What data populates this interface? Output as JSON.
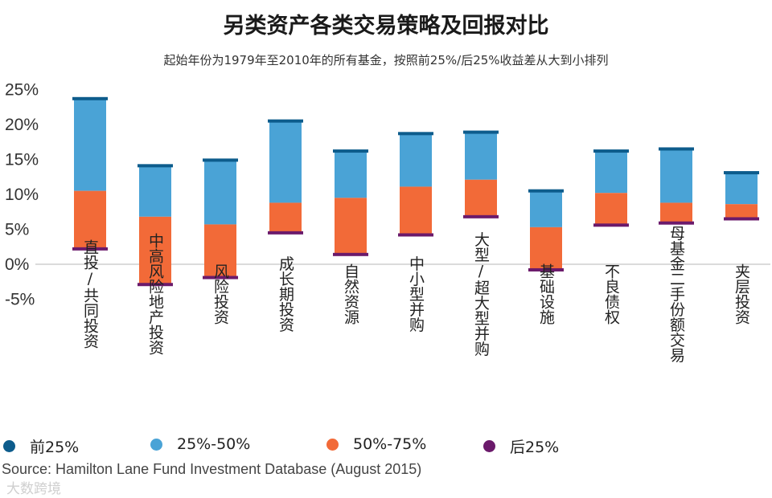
{
  "chart_data": {
    "type": "bar",
    "title": "另类资产各类交易策略及回报对比",
    "subtitle": "起始年份为1979年至2010年的所有基金，按照前25%/后25%收益差从大到小排列",
    "ylim": [
      -5,
      25
    ],
    "yticks": [
      25,
      20,
      15,
      10,
      5,
      0,
      -5
    ],
    "ytick_labels": [
      "25%",
      "20%",
      "15%",
      "10%",
      "5%",
      "0%",
      "-5%"
    ],
    "categories": [
      "直投/共同投资",
      "中高风险地产投资",
      "风险投资",
      "成长期投资",
      "自然资源",
      "中小型并购",
      "大型/超大型并购",
      "基础设施",
      "不良债权",
      "母基金二手份额交易",
      "夹层投资"
    ],
    "series": [
      {
        "name": "前25%",
        "color": "#0d5c8c",
        "values": [
          23.7,
          14.1,
          14.9,
          20.5,
          16.2,
          18.7,
          18.9,
          10.5,
          16.2,
          16.5,
          13.1
        ]
      },
      {
        "name": "25%-50%",
        "color": "#4aa3d6",
        "values": [
          10.5,
          6.8,
          5.7,
          8.8,
          9.5,
          11.1,
          12.1,
          5.3,
          10.2,
          8.8,
          8.6
        ]
      },
      {
        "name": "50%-75%",
        "color": "#f26a38",
        "values": [
          10.5,
          6.8,
          5.7,
          8.8,
          9.5,
          11.1,
          12.1,
          5.3,
          10.2,
          8.8,
          8.6
        ]
      },
      {
        "name": "后25%",
        "color": "#6b1a6b",
        "values": [
          2.2,
          -2.9,
          -1.9,
          4.5,
          1.4,
          4.2,
          6.8,
          -0.8,
          5.6,
          5.9,
          6.5
        ]
      }
    ],
    "legend": [
      "前25%",
      "25%-50%",
      "50%-75%",
      "后25%"
    ],
    "legend_position": "bottom"
  },
  "source": "Source: Hamilton Lane Fund Investment Database (August 2015)",
  "watermark": "大数跨境"
}
